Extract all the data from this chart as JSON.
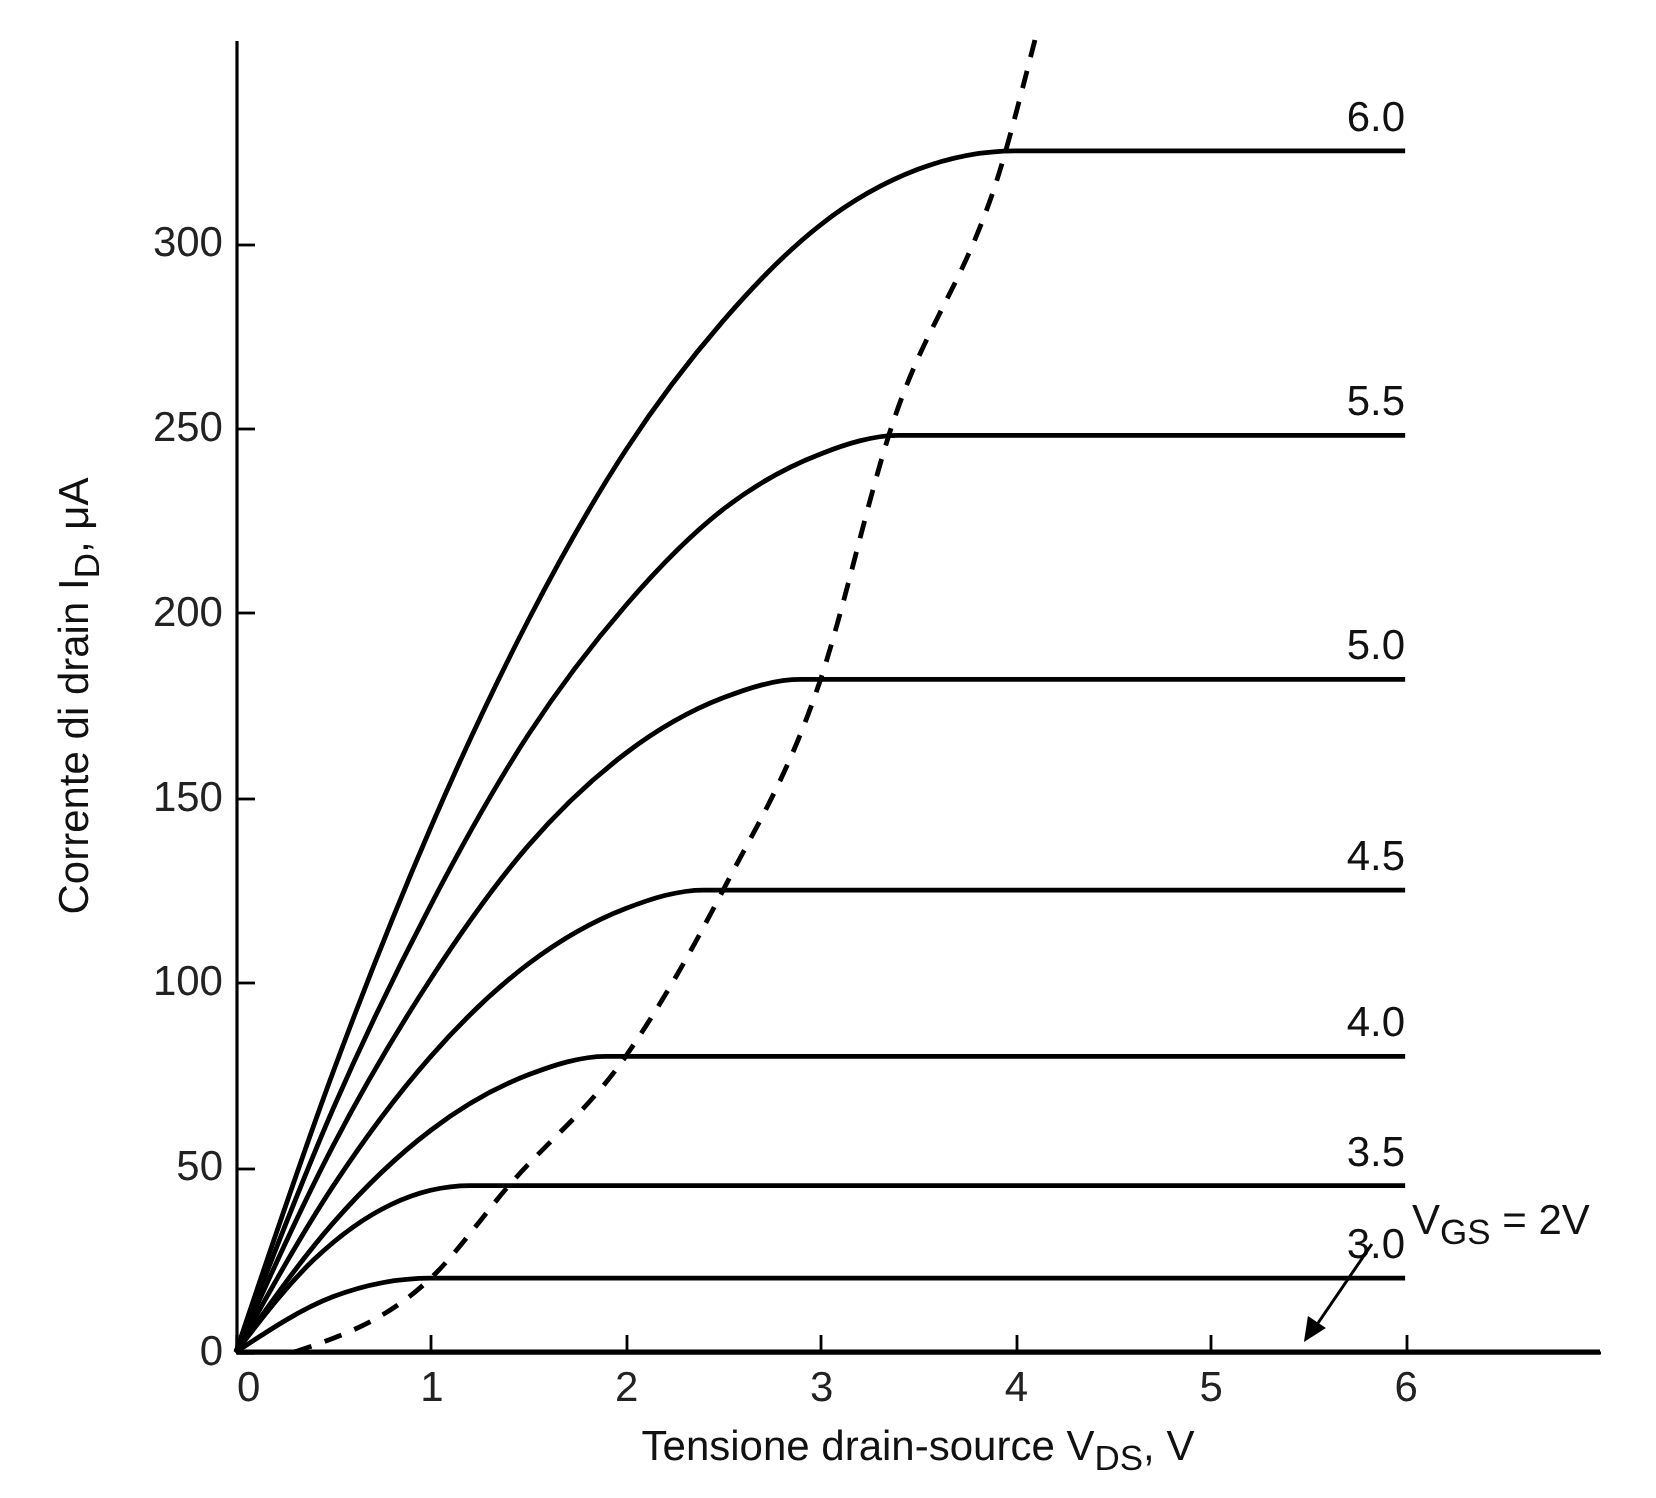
{
  "chart_data": {
    "type": "line",
    "xlabel": "Tensione drain-source V$_{DS}$, V",
    "ylabel": "Corrente di drain I$_{D}$, μA",
    "xlim": [
      0,
      7
    ],
    "ylim": [
      0,
      355
    ],
    "xticks": [
      0,
      1,
      2,
      3,
      4,
      5,
      6
    ],
    "yticks": [
      0,
      50,
      100,
      150,
      200,
      250,
      300
    ],
    "grid": false,
    "legend": false,
    "marker": "none",
    "series": [
      {
        "name": "6.0",
        "color": "#000000",
        "x": [
          0,
          0.5,
          1,
          1.5,
          2,
          2.5,
          3,
          3.5,
          4,
          6
        ],
        "values": [
          0,
          76,
          142,
          198,
          244,
          279,
          305,
          320,
          325,
          325
        ]
      },
      {
        "name": "5.5",
        "color": "#000000",
        "x": [
          0,
          0.5,
          1,
          1.5,
          2,
          2.5,
          3,
          3.4,
          6
        ],
        "values": [
          0,
          66,
          121,
          167,
          202,
          228,
          243,
          248,
          248
        ]
      },
      {
        "name": "5.0",
        "color": "#000000",
        "x": [
          0,
          0.5,
          1,
          1.5,
          2,
          2.5,
          2.9,
          6
        ],
        "values": [
          0,
          56,
          101,
          137,
          162,
          177,
          182,
          182
        ]
      },
      {
        "name": "4.5",
        "color": "#000000",
        "x": [
          0,
          0.5,
          1,
          1.5,
          2,
          2.4,
          6
        ],
        "values": [
          0,
          45,
          80,
          105,
          120,
          125,
          125
        ]
      },
      {
        "name": "4.0",
        "color": "#000000",
        "x": [
          0,
          0.5,
          1,
          1.5,
          1.9,
          6
        ],
        "values": [
          0,
          35,
          60,
          75,
          80,
          80
        ]
      },
      {
        "name": "3.5",
        "color": "#000000",
        "x": [
          0,
          0.4,
          0.8,
          1.2,
          6
        ],
        "values": [
          0,
          25,
          40,
          45,
          45
        ]
      },
      {
        "name": "3.0",
        "color": "#000000",
        "x": [
          0,
          0.5,
          1,
          6
        ],
        "values": [
          0,
          15,
          20,
          20
        ]
      },
      {
        "color": "#000000",
        "x": [
          0,
          7
        ],
        "values": [
          0,
          0
        ]
      },
      {
        "color": "#000000",
        "line_style": "dashed",
        "x": [
          0.3,
          1,
          1.4,
          2,
          2.5,
          3,
          3.35,
          3.95,
          4.1
        ],
        "values": [
          0,
          20,
          45,
          80,
          125,
          182,
          248,
          325,
          355
        ]
      }
    ],
    "annotations": [
      "V$_{GS}$ = 2V"
    ]
  }
}
